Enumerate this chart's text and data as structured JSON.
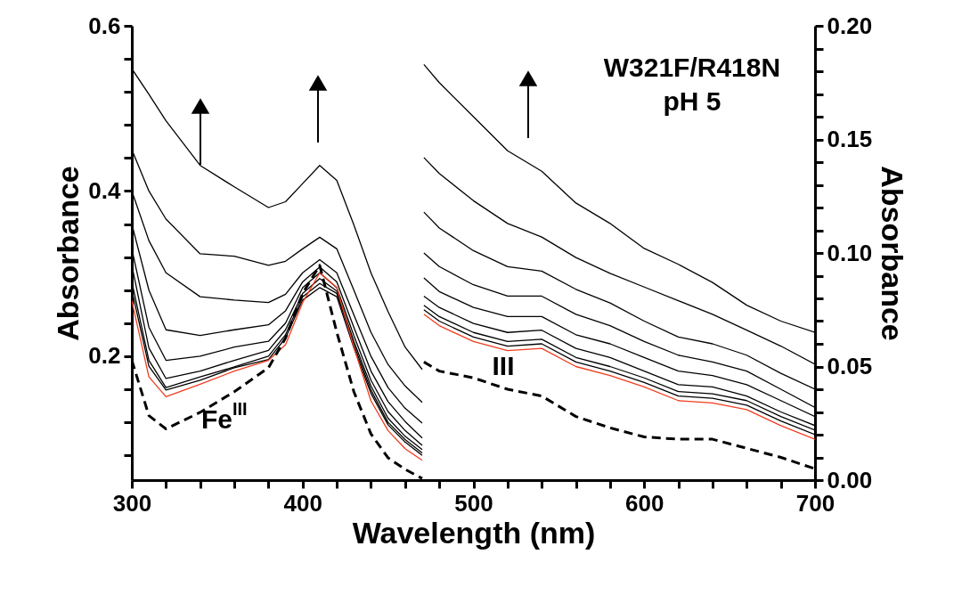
{
  "chart_data": {
    "type": "line",
    "xlabel": "Wavelength (nm)",
    "ylabel": "Absorbance",
    "y2label": "Absorbance",
    "xlim": [
      300,
      700
    ],
    "xticks": [
      300,
      {
        "value": 320,
        "label": null
      },
      {
        "value": 340,
        "label": null
      },
      {
        "value": 360,
        "label": null
      },
      {
        "value": 380,
        "label": null
      },
      400,
      {
        "value": 420,
        "label": null
      },
      {
        "value": 440,
        "label": null
      },
      {
        "value": 460,
        "label": null
      },
      {
        "value": 480,
        "label": null
      },
      500,
      {
        "value": 520,
        "label": null
      },
      {
        "value": 540,
        "label": null
      },
      {
        "value": 560,
        "label": null
      },
      {
        "value": 580,
        "label": null
      },
      600,
      {
        "value": 620,
        "label": null
      },
      {
        "value": 640,
        "label": null
      },
      {
        "value": 660,
        "label": null
      },
      {
        "value": 680,
        "label": null
      },
      700
    ],
    "ylim": [
      0.05,
      0.6
    ],
    "yticks": [
      {
        "value": 0.08,
        "label": null
      },
      {
        "value": 0.12,
        "label": null
      },
      {
        "value": 0.16,
        "label": null
      },
      0.2,
      {
        "value": 0.24,
        "label": null
      },
      {
        "value": 0.28,
        "label": null
      },
      {
        "value": 0.32,
        "label": null
      },
      {
        "value": 0.36,
        "label": null
      },
      0.4,
      {
        "value": 0.44,
        "label": null
      },
      {
        "value": 0.48,
        "label": null
      },
      {
        "value": 0.52,
        "label": null
      },
      {
        "value": 0.56,
        "label": null
      },
      0.6
    ],
    "y2lim": [
      0,
      0.2
    ],
    "y2ticks": [
      {
        "value": 0,
        "label": "0.00"
      },
      {
        "value": 0.01,
        "label": null
      },
      {
        "value": 0.02,
        "label": null
      },
      {
        "value": 0.03,
        "label": null
      },
      {
        "value": 0.04,
        "label": null
      },
      {
        "value": 0.05,
        "label": "0.05"
      },
      {
        "value": 0.06,
        "label": null
      },
      {
        "value": 0.07,
        "label": null
      },
      {
        "value": 0.08,
        "label": null
      },
      {
        "value": 0.09,
        "label": null
      },
      {
        "value": 0.1,
        "label": "0.10"
      },
      {
        "value": 0.11,
        "label": null
      },
      {
        "value": 0.12,
        "label": null
      },
      {
        "value": 0.13,
        "label": null
      },
      {
        "value": 0.14,
        "label": null
      },
      {
        "value": 0.15,
        "label": "0.15"
      },
      {
        "value": 0.16,
        "label": null
      },
      {
        "value": 0.17,
        "label": null
      },
      {
        "value": 0.18,
        "label": null
      },
      {
        "value": 0.19,
        "label": null
      },
      {
        "value": 0.2,
        "label": "0.20"
      }
    ],
    "x": [
      300,
      310,
      320,
      340,
      360,
      380,
      390,
      400,
      410,
      420,
      430,
      440,
      450,
      460,
      470
    ],
    "series": [
      {
        "color": "#000000",
        "values": [
          0.548,
          0.517,
          0.485,
          0.431,
          0.405,
          0.38,
          0.387,
          0.409,
          0.431,
          0.413,
          0.359,
          0.301,
          0.254,
          0.211,
          0.184
        ]
      },
      {
        "color": "#000000",
        "values": [
          0.45,
          0.4,
          0.366,
          0.324,
          0.321,
          0.31,
          0.315,
          0.33,
          0.344,
          0.33,
          0.28,
          0.229,
          0.19,
          0.164,
          0.144
        ]
      },
      {
        "color": "#000000",
        "values": [
          0.4,
          0.34,
          0.301,
          0.272,
          0.268,
          0.265,
          0.275,
          0.301,
          0.317,
          0.301,
          0.25,
          0.2,
          0.162,
          0.137,
          0.119
        ]
      },
      {
        "color": "#000000",
        "values": [
          0.36,
          0.28,
          0.232,
          0.225,
          0.232,
          0.238,
          0.255,
          0.29,
          0.308,
          0.29,
          0.235,
          0.182,
          0.145,
          0.121,
          0.101
        ]
      },
      {
        "color": "#000000",
        "values": [
          0.33,
          0.235,
          0.195,
          0.2,
          0.211,
          0.218,
          0.24,
          0.283,
          0.301,
          0.283,
          0.225,
          0.171,
          0.133,
          0.11,
          0.092
        ]
      },
      {
        "color": "#000000",
        "values": [
          0.31,
          0.21,
          0.173,
          0.182,
          0.195,
          0.207,
          0.232,
          0.276,
          0.294,
          0.279,
          0.218,
          0.164,
          0.125,
          0.103,
          0.087
        ]
      },
      {
        "color": "#000000",
        "values": [
          0.29,
          0.195,
          0.162,
          0.175,
          0.187,
          0.2,
          0.226,
          0.272,
          0.288,
          0.276,
          0.214,
          0.159,
          0.12,
          0.099,
          0.083
        ]
      },
      {
        "color": "#000000",
        "values": [
          0.28,
          0.188,
          0.159,
          0.171,
          0.186,
          0.196,
          0.222,
          0.268,
          0.283,
          0.272,
          0.21,
          0.155,
          0.117,
          0.096,
          0.08
        ]
      },
      {
        "color": "#f03c1e",
        "values": [
          0.267,
          0.175,
          0.151,
          0.166,
          0.182,
          0.195,
          0.214,
          0.265,
          0.301,
          0.283,
          0.211,
          0.146,
          0.11,
          0.088,
          0.074
        ]
      },
      {
        "color": "#000000",
        "line_style": "dashed",
        "values": [
          0.195,
          0.128,
          0.112,
          0.132,
          0.157,
          0.186,
          0.222,
          0.276,
          0.31,
          0.229,
          0.157,
          0.106,
          0.077,
          0.063,
          0.052
        ]
      },
      {
        "axis": "y2",
        "color": "#000000",
        "x": [
          471,
          480,
          500,
          520,
          540,
          560,
          580,
          600,
          620,
          640,
          660,
          680,
          700
        ],
        "values": [
          0.183,
          0.175,
          0.16,
          0.145,
          0.136,
          0.122,
          0.113,
          0.102,
          0.095,
          0.087,
          0.077,
          0.07,
          0.065
        ]
      },
      {
        "axis": "y2",
        "color": "#000000",
        "x": [
          471,
          480,
          500,
          520,
          540,
          560,
          580,
          600,
          620,
          640,
          660,
          680,
          700
        ],
        "values": [
          0.142,
          0.135,
          0.123,
          0.113,
          0.107,
          0.098,
          0.091,
          0.085,
          0.079,
          0.073,
          0.066,
          0.059,
          0.051
        ]
      },
      {
        "axis": "y2",
        "color": "#000000",
        "x": [
          471,
          480,
          500,
          520,
          540,
          560,
          580,
          600,
          620,
          640,
          660,
          680,
          700
        ],
        "values": [
          0.118,
          0.111,
          0.101,
          0.094,
          0.092,
          0.084,
          0.078,
          0.07,
          0.063,
          0.06,
          0.055,
          0.047,
          0.04
        ]
      },
      {
        "axis": "y2",
        "color": "#000000",
        "x": [
          471,
          480,
          500,
          520,
          540,
          560,
          580,
          600,
          620,
          640,
          660,
          680,
          700
        ],
        "values": [
          0.1,
          0.094,
          0.086,
          0.081,
          0.081,
          0.073,
          0.068,
          0.061,
          0.055,
          0.052,
          0.048,
          0.04,
          0.032
        ]
      },
      {
        "axis": "y2",
        "color": "#000000",
        "x": [
          471,
          480,
          500,
          520,
          540,
          560,
          580,
          600,
          620,
          640,
          660,
          680,
          700
        ],
        "values": [
          0.089,
          0.083,
          0.076,
          0.072,
          0.072,
          0.064,
          0.06,
          0.054,
          0.048,
          0.046,
          0.042,
          0.035,
          0.028
        ]
      },
      {
        "axis": "y2",
        "color": "#000000",
        "x": [
          471,
          480,
          500,
          520,
          540,
          560,
          580,
          600,
          620,
          640,
          660,
          680,
          700
        ],
        "values": [
          0.081,
          0.076,
          0.069,
          0.065,
          0.066,
          0.058,
          0.054,
          0.048,
          0.042,
          0.041,
          0.037,
          0.03,
          0.024
        ]
      },
      {
        "axis": "y2",
        "color": "#000000",
        "x": [
          471,
          480,
          500,
          520,
          540,
          560,
          580,
          600,
          620,
          640,
          660,
          680,
          700
        ],
        "values": [
          0.077,
          0.072,
          0.065,
          0.061,
          0.062,
          0.054,
          0.05,
          0.045,
          0.039,
          0.038,
          0.035,
          0.028,
          0.022
        ]
      },
      {
        "axis": "y2",
        "color": "#000000",
        "x": [
          471,
          480,
          500,
          520,
          540,
          560,
          580,
          600,
          620,
          640,
          660,
          680,
          700
        ],
        "values": [
          0.075,
          0.07,
          0.063,
          0.059,
          0.06,
          0.052,
          0.048,
          0.043,
          0.037,
          0.036,
          0.033,
          0.026,
          0.02
        ]
      },
      {
        "axis": "y2",
        "color": "#f03c1e",
        "x": [
          471,
          480,
          500,
          520,
          540,
          560,
          580,
          600,
          620,
          640,
          660,
          680,
          700
        ],
        "values": [
          0.073,
          0.068,
          0.061,
          0.057,
          0.058,
          0.05,
          0.046,
          0.041,
          0.035,
          0.034,
          0.031,
          0.024,
          0.018
        ]
      },
      {
        "axis": "y2",
        "color": "#000000",
        "line_style": "dashed",
        "x": [
          471,
          480,
          500,
          520,
          540,
          560,
          580,
          600,
          620,
          640,
          660,
          680,
          700
        ],
        "values": [
          0.052,
          0.048,
          0.045,
          0.04,
          0.037,
          0.028,
          0.023,
          0.019,
          0.018,
          0.018,
          0.014,
          0.01,
          0.005
        ]
      }
    ],
    "annotations": [
      "W321F/R418N",
      "pH 5",
      "Fe$^{III}$",
      "III"
    ]
  }
}
